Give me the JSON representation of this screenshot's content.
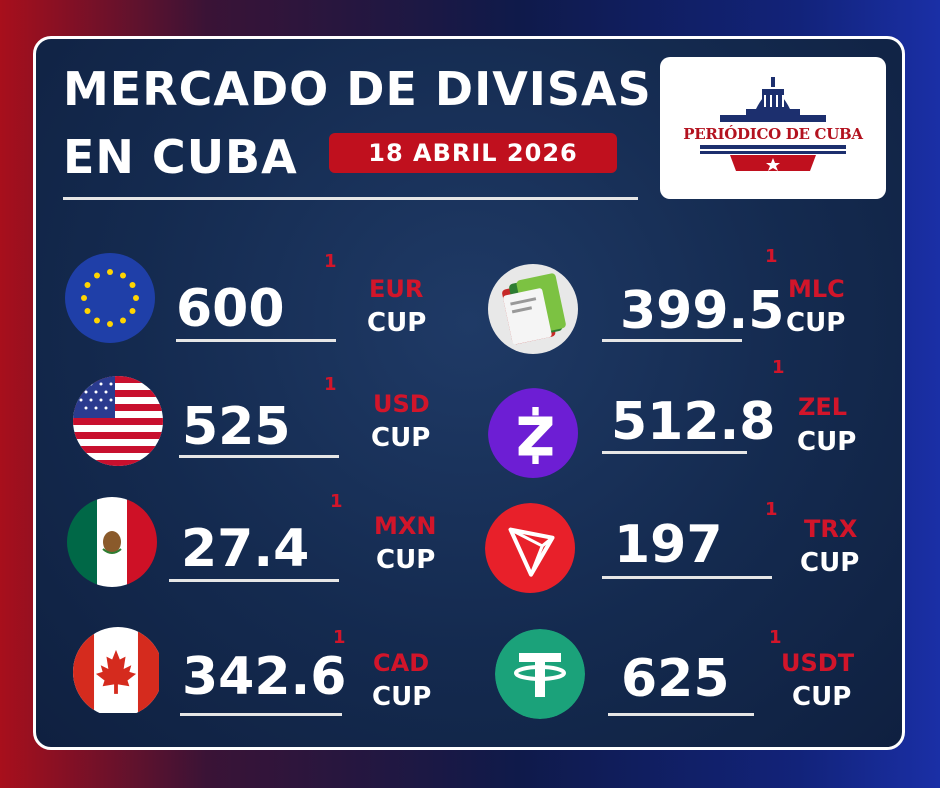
{
  "header": {
    "title_line1": "MERCADO DE DIVISAS",
    "title_line2": "EN CUBA",
    "date": "18 ABRIL 2026",
    "logo_text": "PERIÓDICO DE CUBA"
  },
  "rates_left": [
    {
      "value": "600",
      "code": "EUR",
      "unit": "CUP",
      "marker": "1",
      "icon": "eu-flag-icon"
    },
    {
      "value": "525",
      "code": "USD",
      "unit": "CUP",
      "marker": "1",
      "icon": "usa-flag-icon"
    },
    {
      "value": "27.4",
      "code": "MXN",
      "unit": "CUP",
      "marker": "1",
      "icon": "mexico-flag-icon"
    },
    {
      "value": "342.6",
      "code": "CAD",
      "unit": "CUP",
      "marker": "1",
      "icon": "canada-flag-icon"
    }
  ],
  "rates_right": [
    {
      "value": "399.5",
      "code": "MLC",
      "unit": "CUP",
      "marker": "1",
      "icon": "mlc-cards-icon"
    },
    {
      "value": "512.8",
      "code": "ZEL",
      "unit": "CUP",
      "marker": "1",
      "icon": "zelle-icon"
    },
    {
      "value": "197",
      "code": "TRX",
      "unit": "CUP",
      "marker": "1",
      "icon": "tron-icon"
    },
    {
      "value": "625",
      "code": "USDT",
      "unit": "CUP",
      "marker": "1",
      "icon": "tether-icon"
    }
  ],
  "colors": {
    "accent_red": "#c0101e",
    "panel_blue": "#142a4f",
    "zelle_purple": "#6d1ed4",
    "tron_red": "#e8202a",
    "tether_green": "#1ba27a"
  }
}
